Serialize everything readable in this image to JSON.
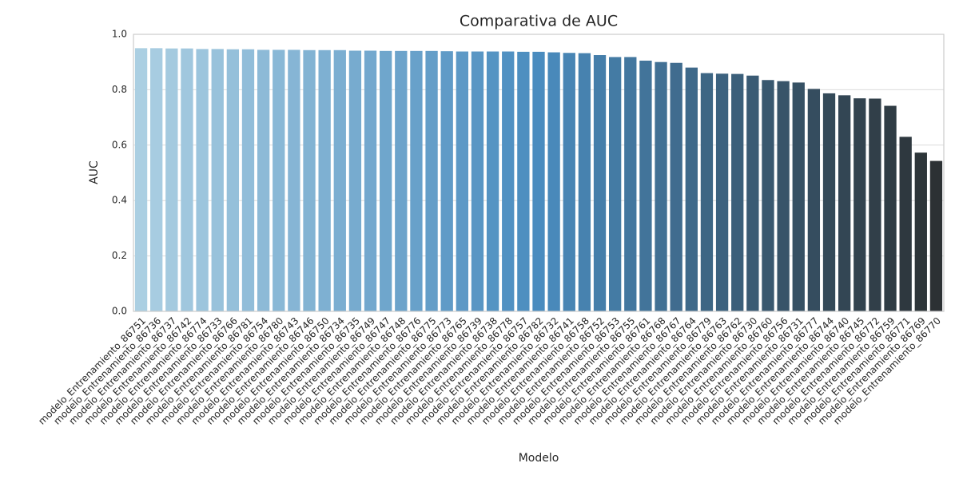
{
  "chart_data": {
    "type": "bar",
    "title": "Comparativa de AUC",
    "xlabel": "Modelo",
    "ylabel": "AUC",
    "categories": [
      "modelo_Entrenamiento_86751",
      "modelo_Entrenamiento_86736",
      "modelo_Entrenamiento_86737",
      "modelo_Entrenamiento_86742",
      "modelo_Entrenamiento_86774",
      "modelo_Entrenamiento_86733",
      "modelo_Entrenamiento_86766",
      "modelo_Entrenamiento_86781",
      "modelo_Entrenamiento_86754",
      "modelo_Entrenamiento_86780",
      "modelo_Entrenamiento_86743",
      "modelo_Entrenamiento_86746",
      "modelo_Entrenamiento_86750",
      "modelo_Entrenamiento_86734",
      "modelo_Entrenamiento_86735",
      "modelo_Entrenamiento_86749",
      "modelo_Entrenamiento_86747",
      "modelo_Entrenamiento_86748",
      "modelo_Entrenamiento_86776",
      "modelo_Entrenamiento_86775",
      "modelo_Entrenamiento_86773",
      "modelo_Entrenamiento_86765",
      "modelo_Entrenamiento_86739",
      "modelo_Entrenamiento_86738",
      "modelo_Entrenamiento_86778",
      "modelo_Entrenamiento_86757",
      "modelo_Entrenamiento_86782",
      "modelo_Entrenamiento_86732",
      "modelo_Entrenamiento_86741",
      "modelo_Entrenamiento_86758",
      "modelo_Entrenamiento_86752",
      "modelo_Entrenamiento_86753",
      "modelo_Entrenamiento_86755",
      "modelo_Entrenamiento_86761",
      "modelo_Entrenamiento_86768",
      "modelo_Entrenamiento_86767",
      "modelo_Entrenamiento_86764",
      "modelo_Entrenamiento_86779",
      "modelo_Entrenamiento_86763",
      "modelo_Entrenamiento_86762",
      "modelo_Entrenamiento_86730",
      "modelo_Entrenamiento_86760",
      "modelo_Entrenamiento_86756",
      "modelo_Entrenamiento_86731",
      "modelo_Entrenamiento_86777",
      "modelo_Entrenamiento_86744",
      "modelo_Entrenamiento_86740",
      "modelo_Entrenamiento_86745",
      "modelo_Entrenamiento_86772",
      "modelo_Entrenamiento_86759",
      "modelo_Entrenamiento_86771",
      "modelo_Entrenamiento_86769",
      "modelo_Entrenamiento_86770"
    ],
    "values": [
      0.95,
      0.95,
      0.949,
      0.949,
      0.947,
      0.947,
      0.946,
      0.946,
      0.944,
      0.944,
      0.944,
      0.943,
      0.943,
      0.943,
      0.941,
      0.941,
      0.94,
      0.94,
      0.94,
      0.94,
      0.939,
      0.938,
      0.938,
      0.938,
      0.938,
      0.937,
      0.937,
      0.935,
      0.933,
      0.932,
      0.925,
      0.918,
      0.918,
      0.905,
      0.9,
      0.897,
      0.88,
      0.86,
      0.858,
      0.857,
      0.851,
      0.835,
      0.831,
      0.826,
      0.803,
      0.787,
      0.78,
      0.769,
      0.768,
      0.742,
      0.63,
      0.573,
      0.543
    ],
    "palette": [
      "#abcfe2",
      "#4a8cbf",
      "#2c3134"
    ],
    "ylim": [
      0,
      1
    ],
    "yticks": [
      {
        "value": 0,
        "label": "0.0"
      },
      0.2,
      0.4,
      0.6,
      0.8,
      {
        "value": 1,
        "label": "1.0"
      }
    ],
    "grid": true
  }
}
